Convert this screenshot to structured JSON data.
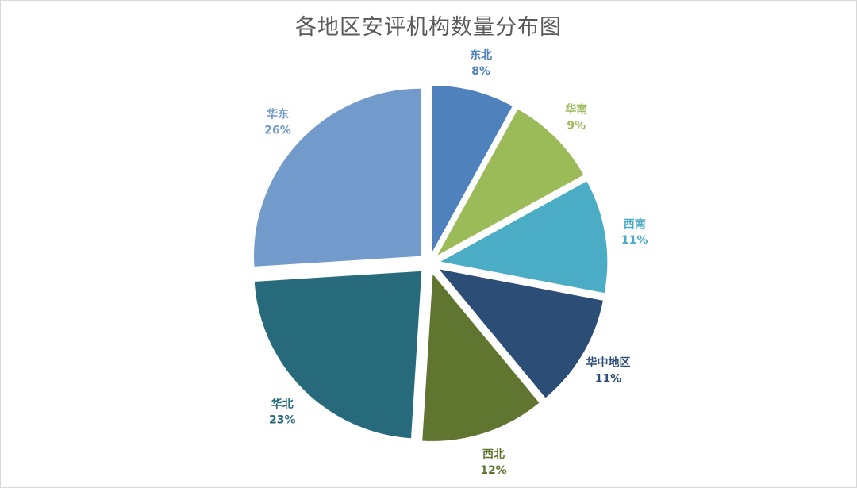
{
  "chart_data": {
    "type": "pie",
    "title": "各地区安评机构数量分布图",
    "slices": [
      {
        "label": "东北",
        "value": 8,
        "value_label": "8%",
        "color": "#4f81bd",
        "label_color": "#4f81bd"
      },
      {
        "label": "华南",
        "value": 9,
        "value_label": "9%",
        "color": "#9bbb59",
        "label_color": "#9bbb59"
      },
      {
        "label": "西南",
        "value": 11,
        "value_label": "11%",
        "color": "#4bacc6",
        "label_color": "#4bacc6"
      },
      {
        "label": "华中地区",
        "value": 11,
        "value_label": "11%",
        "color": "#2c4d75",
        "label_color": "#2c4d75"
      },
      {
        "label": "西北",
        "value": 12,
        "value_label": "12%",
        "color": "#5f7530",
        "label_color": "#5f7530"
      },
      {
        "label": "华北",
        "value": 23,
        "value_label": "23%",
        "color": "#276a7c",
        "label_color": "#276a7c"
      },
      {
        "label": "华东",
        "value": 26,
        "value_label": "26%",
        "color": "#729aca",
        "label_color": "#729aca"
      }
    ],
    "start_angle": "12 o'clock",
    "direction": "clockwise",
    "exploded": true,
    "legend": "none"
  }
}
